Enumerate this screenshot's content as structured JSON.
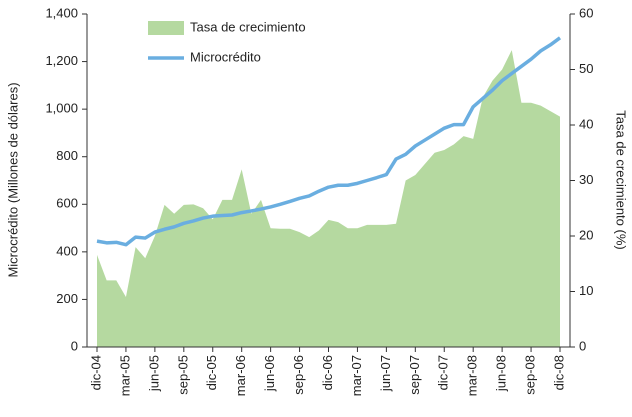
{
  "chart_data": {
    "type": "area-line",
    "categories": [
      "dic-04",
      null,
      null,
      "mar-05",
      null,
      null,
      "jun-05",
      null,
      null,
      "sep-05",
      null,
      null,
      "dic-05",
      null,
      null,
      "mar-06",
      null,
      null,
      "jun-06",
      null,
      null,
      "sep-06",
      null,
      null,
      "dic-06",
      null,
      null,
      "mar-07",
      null,
      null,
      "jun-07",
      null,
      null,
      "sep-07",
      null,
      null,
      "dic-07",
      null,
      null,
      "mar-08",
      null,
      null,
      "jun-08",
      null,
      null,
      "sep-08",
      null,
      null,
      "dic-08"
    ],
    "series": [
      {
        "name": "Tasa de crecimiento",
        "color": "#b5d9a0",
        "axis": "y2",
        "kind": "area",
        "values": [
          16.6,
          12,
          12,
          9,
          18,
          16,
          20,
          25.6,
          24,
          25.6,
          25.7,
          25,
          23,
          26.5,
          26.5,
          32,
          24,
          26.5,
          21.4,
          21.3,
          21.3,
          20.7,
          19.8,
          21,
          22.9,
          22.5,
          21.4,
          21.4,
          22,
          22,
          22,
          22.2,
          30,
          31,
          33,
          35,
          35.5,
          36.5,
          38,
          37.5,
          45,
          48,
          50,
          53.5,
          44,
          44,
          43.5,
          42.5,
          41.5
        ]
      },
      {
        "name": "Microcrédito",
        "color": "#6aaee0",
        "kind": "line",
        "values": [
          445,
          438,
          440,
          430,
          462,
          458,
          483,
          495,
          505,
          520,
          530,
          542,
          550,
          553,
          555,
          565,
          572,
          580,
          589,
          600,
          612,
          625,
          635,
          655,
          672,
          680,
          680,
          688,
          700,
          712,
          725,
          790,
          810,
          845,
          870,
          895,
          920,
          935,
          935,
          1010,
          1045,
          1080,
          1120,
          1150,
          1180,
          1210,
          1245,
          1270,
          1300
        ]
      }
    ],
    "ylabel": "Microcrédito (Millones de dólares)",
    "y2label": "Tasa de crecimiento (%)",
    "ylim": [
      0,
      1400
    ],
    "yticks": [
      0,
      200,
      400,
      600,
      800,
      {
        "value": 1000,
        "label": "1,000"
      },
      {
        "value": 1200,
        "label": "1,200"
      },
      {
        "value": 1400,
        "label": "1,400"
      }
    ],
    "y2lim": [
      0,
      60
    ],
    "y2ticks": [
      0,
      10,
      20,
      30,
      40,
      50,
      60
    ],
    "legend": "upper left"
  }
}
